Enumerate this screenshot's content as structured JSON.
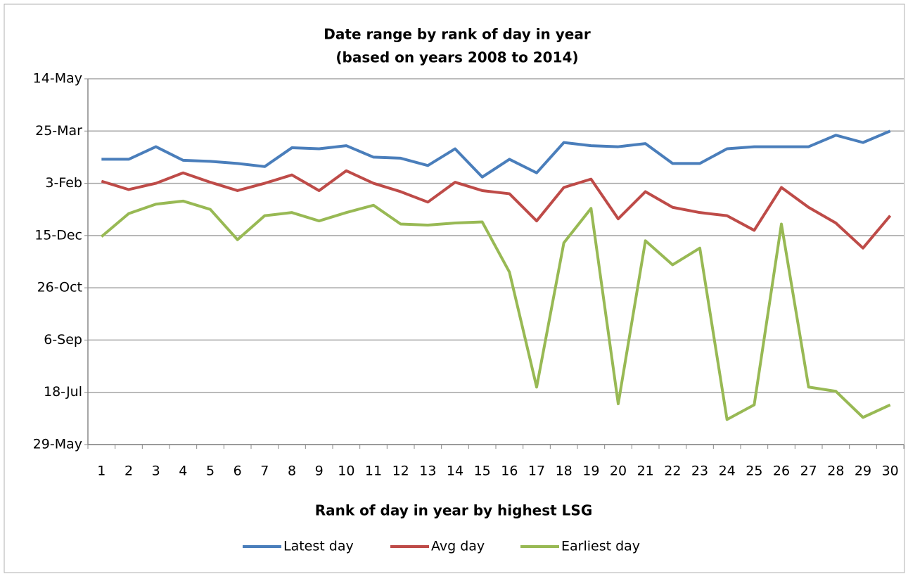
{
  "chart_data": {
    "type": "line",
    "title": "Date range by rank of day in year",
    "subtitle": "(based on years 2008 to 2014)",
    "x_label": "Rank of day in year by highest LSG",
    "categories": [
      "1",
      "2",
      "3",
      "4",
      "5",
      "6",
      "7",
      "8",
      "9",
      "10",
      "11",
      "12",
      "13",
      "14",
      "15",
      "16",
      "17",
      "18",
      "19",
      "20",
      "21",
      "22",
      "23",
      "24",
      "25",
      "26",
      "27",
      "28",
      "29",
      "30"
    ],
    "series": [
      {
        "name": "Latest day",
        "color": "#4a7ebb",
        "values": [
          273,
          273,
          285,
          272,
          271,
          269,
          266,
          284,
          283,
          286,
          275,
          274,
          267,
          283,
          256,
          273,
          260,
          289,
          286,
          285,
          288,
          269,
          269,
          283,
          285,
          285,
          285,
          296,
          289,
          300
        ]
      },
      {
        "name": "Avg day",
        "color": "#be4b48",
        "values": [
          252,
          244,
          250,
          260,
          251,
          243,
          250,
          258,
          243,
          262,
          250,
          242,
          232,
          251,
          243,
          240,
          214,
          246,
          254,
          216,
          242,
          227,
          222,
          219,
          205,
          246,
          227,
          212,
          188,
          219
        ]
      },
      {
        "name": "Earliest day",
        "color": "#98b954",
        "values": [
          199,
          221,
          230,
          233,
          225,
          196,
          219,
          222,
          214,
          222,
          229,
          211,
          210,
          212,
          213,
          165,
          55,
          193,
          226,
          39,
          195,
          172,
          188,
          24,
          38,
          211,
          55,
          51,
          26,
          38
        ]
      }
    ],
    "ylim": [
      0,
      350
    ],
    "yticks": [
      {
        "value": 0,
        "label": "29-May"
      },
      {
        "value": 50,
        "label": "18-Jul"
      },
      {
        "value": 100,
        "label": "6-Sep"
      },
      {
        "value": 150,
        "label": "26-Oct"
      },
      {
        "value": 200,
        "label": "15-Dec"
      },
      {
        "value": 250,
        "label": "3-Feb"
      },
      {
        "value": 300,
        "label": "25-Mar"
      },
      {
        "value": 350,
        "label": "14-May"
      }
    ],
    "grid": true,
    "legend": "bottom"
  }
}
